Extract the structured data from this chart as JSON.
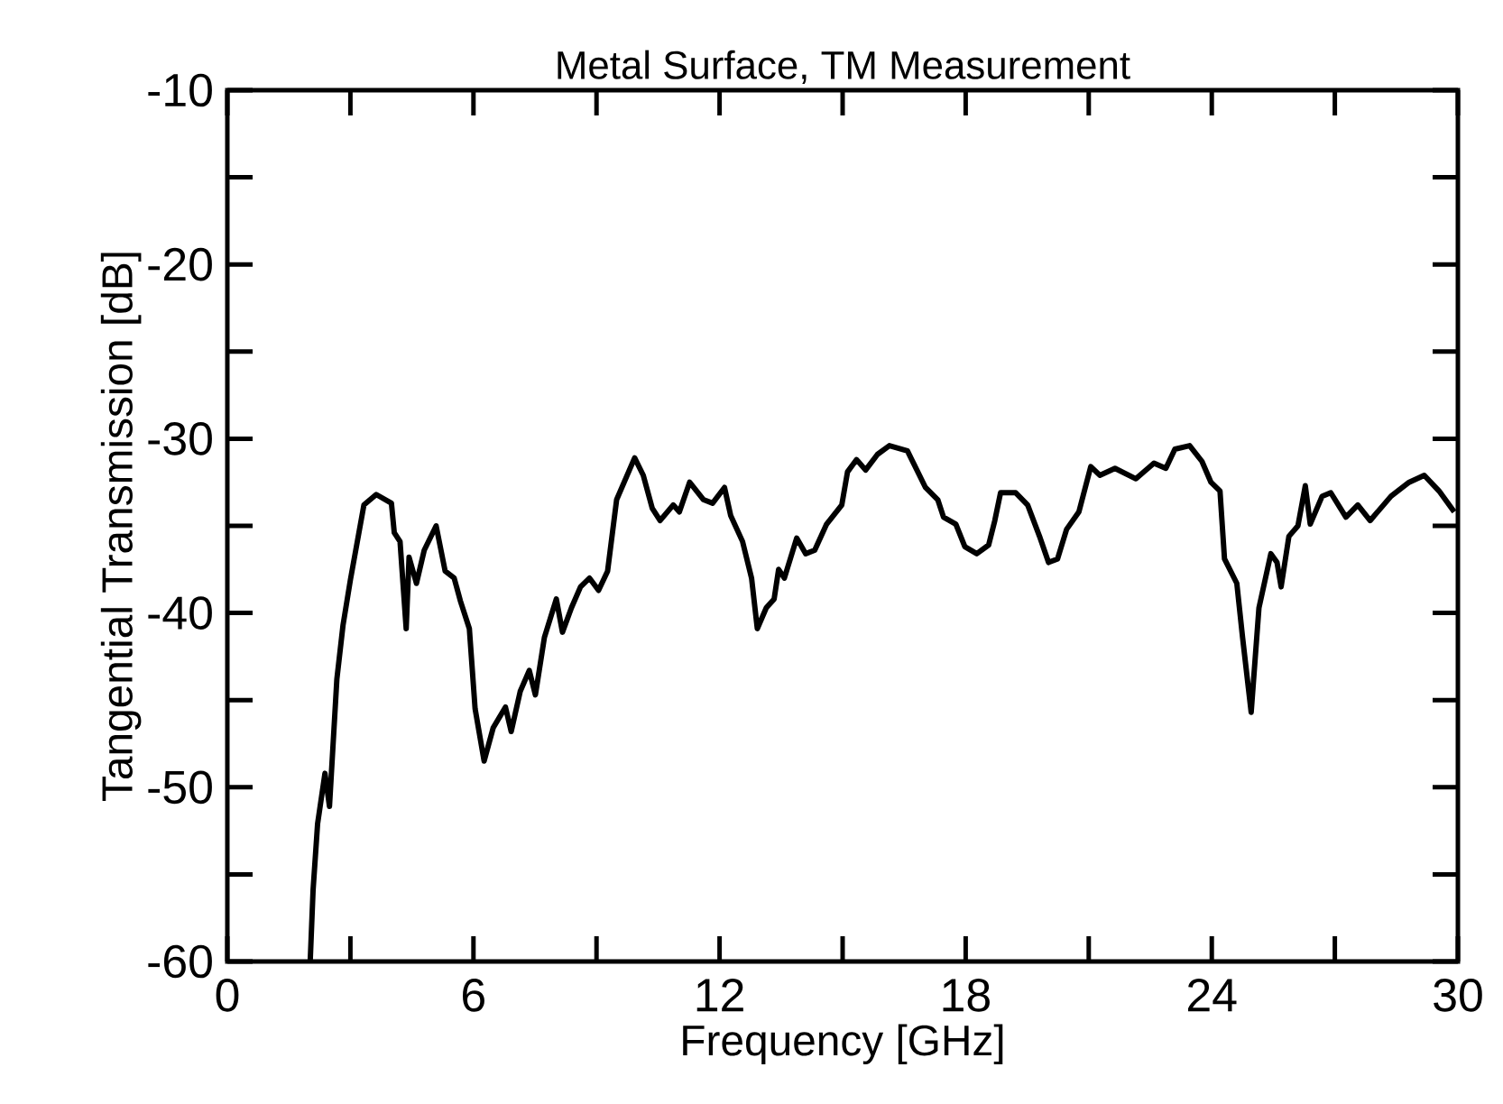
{
  "chart_data": {
    "type": "line",
    "title": "Metal Surface, TM Measurement",
    "xlabel": "Frequency [GHz]",
    "ylabel": "Tangential Transmission [dB]",
    "xlim": [
      0,
      30
    ],
    "ylim": [
      -60,
      -10
    ],
    "xticks": [
      0,
      {
        "value": 3,
        "label": null
      },
      6,
      {
        "value": 9,
        "label": null
      },
      12,
      {
        "value": 15,
        "label": null
      },
      18,
      {
        "value": 21,
        "label": null
      },
      24,
      {
        "value": 27,
        "label": null
      },
      30
    ],
    "yticks": [
      -60,
      {
        "value": -55,
        "label": null
      },
      -50,
      {
        "value": -45,
        "label": null
      },
      -40,
      {
        "value": -35,
        "label": null
      },
      -30,
      {
        "value": -25,
        "label": null
      },
      -20,
      {
        "value": -15,
        "label": null
      },
      -10
    ],
    "grid": false,
    "marker": "none",
    "line_style": "solid",
    "series": [
      {
        "color": "#000000",
        "x": [
          2.02,
          2.09,
          2.2,
          2.38,
          2.49,
          2.67,
          2.82,
          3.0,
          3.33,
          3.63,
          4.0,
          4.07,
          4.21,
          4.36,
          4.43,
          4.61,
          4.8,
          5.09,
          5.31,
          5.53,
          5.68,
          5.9,
          6.04,
          6.26,
          6.48,
          6.78,
          6.92,
          7.14,
          7.36,
          7.51,
          7.73,
          8.02,
          8.17,
          8.39,
          8.61,
          8.83,
          9.05,
          9.27,
          9.49,
          9.93,
          10.14,
          10.36,
          10.55,
          10.87,
          11.02,
          11.27,
          11.61,
          11.83,
          12.12,
          12.27,
          12.56,
          12.78,
          12.92,
          13.14,
          13.33,
          13.44,
          13.58,
          13.88,
          14.1,
          14.32,
          14.61,
          14.98,
          15.12,
          15.34,
          15.56,
          15.85,
          16.14,
          16.58,
          17.02,
          17.32,
          17.46,
          17.76,
          17.98,
          18.27,
          18.56,
          18.71,
          18.85,
          19.22,
          19.51,
          19.8,
          20.02,
          20.24,
          20.46,
          20.76,
          21.05,
          21.27,
          21.64,
          22.15,
          22.59,
          22.88,
          23.1,
          23.46,
          23.76,
          23.98,
          24.2,
          24.31,
          24.61,
          24.75,
          24.96,
          25.15,
          25.44,
          25.59,
          25.69,
          25.88,
          26.1,
          26.28,
          26.4,
          26.69,
          26.9,
          27.27,
          27.56,
          27.86,
          28.37,
          28.81,
          29.18,
          29.54,
          29.91
        ],
        "values": [
          -60,
          -55.9,
          -52.1,
          -49.2,
          -51.1,
          -43.8,
          -40.7,
          -38.1,
          -33.8,
          -33.2,
          -33.7,
          -35.4,
          -35.9,
          -40.9,
          -36.8,
          -38.3,
          -36.4,
          -35.0,
          -37.6,
          -38.0,
          -39.3,
          -40.9,
          -45.5,
          -48.5,
          -46.6,
          -45.4,
          -46.8,
          -44.5,
          -43.3,
          -44.7,
          -41.4,
          -39.2,
          -41.1,
          -39.7,
          -38.5,
          -38.0,
          -38.7,
          -37.6,
          -33.5,
          -31.1,
          -32.1,
          -34.0,
          -34.7,
          -33.8,
          -34.2,
          -32.5,
          -33.5,
          -33.7,
          -32.8,
          -34.4,
          -35.9,
          -38.0,
          -40.9,
          -39.7,
          -39.2,
          -37.5,
          -38.0,
          -35.7,
          -36.6,
          -36.4,
          -34.9,
          -33.8,
          -31.9,
          -31.2,
          -31.8,
          -30.9,
          -30.4,
          -30.7,
          -32.8,
          -33.5,
          -34.5,
          -34.9,
          -36.2,
          -36.6,
          -36.1,
          -34.7,
          -33.1,
          -33.1,
          -33.8,
          -35.6,
          -37.1,
          -36.9,
          -35.2,
          -34.2,
          -31.6,
          -32.1,
          -31.7,
          -32.3,
          -31.4,
          -31.7,
          -30.6,
          -30.4,
          -31.3,
          -32.5,
          -33.0,
          -36.9,
          -38.3,
          -41.4,
          -45.7,
          -39.7,
          -36.6,
          -37.1,
          -38.5,
          -35.6,
          -35.0,
          -32.7,
          -34.9,
          -33.3,
          -33.1,
          -34.5,
          -33.8,
          -34.7,
          -33.3,
          -32.5,
          -32.1,
          -33.0,
          -34.2
        ]
      }
    ]
  }
}
